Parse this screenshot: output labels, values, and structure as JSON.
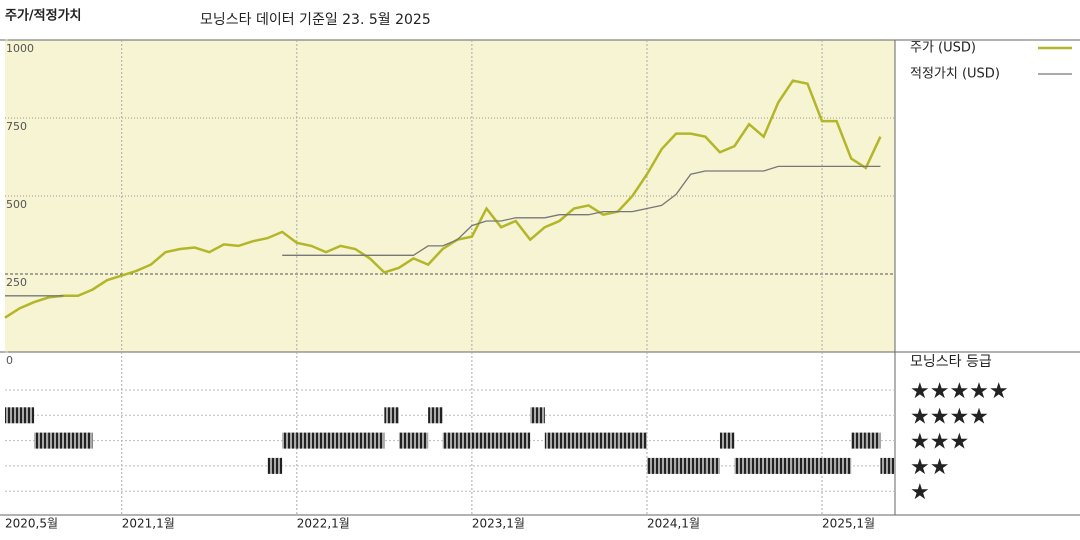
{
  "chart_data": {
    "type": "line",
    "title": "주가/적정가치",
    "subtitle": "모닝스타 데이터 기준일 23. 5월 2025",
    "x": [
      "2020-05",
      "2020-06",
      "2020-07",
      "2020-08",
      "2020-09",
      "2020-10",
      "2020-11",
      "2020-12",
      "2021-01",
      "2021-02",
      "2021-03",
      "2021-04",
      "2021-05",
      "2021-06",
      "2021-07",
      "2021-08",
      "2021-09",
      "2021-10",
      "2021-11",
      "2021-12",
      "2022-01",
      "2022-02",
      "2022-03",
      "2022-04",
      "2022-05",
      "2022-06",
      "2022-07",
      "2022-08",
      "2022-09",
      "2022-10",
      "2022-11",
      "2022-12",
      "2023-01",
      "2023-02",
      "2023-03",
      "2023-04",
      "2023-05",
      "2023-06",
      "2023-07",
      "2023-08",
      "2023-09",
      "2023-10",
      "2023-11",
      "2023-12",
      "2024-01",
      "2024-02",
      "2024-03",
      "2024-04",
      "2024-05",
      "2024-06",
      "2024-07",
      "2024-08",
      "2024-09",
      "2024-10",
      "2024-11",
      "2024-12",
      "2025-01",
      "2025-02",
      "2025-03",
      "2025-04",
      "2025-05"
    ],
    "series": [
      {
        "name": "주가 (USD)",
        "color": "#b3b628",
        "values": [
          110,
          140,
          160,
          175,
          180,
          180,
          200,
          230,
          245,
          260,
          280,
          320,
          330,
          335,
          320,
          345,
          340,
          355,
          365,
          385,
          350,
          340,
          320,
          340,
          330,
          300,
          255,
          270,
          300,
          280,
          330,
          360,
          370,
          460,
          400,
          420,
          360,
          400,
          420,
          460,
          470,
          440,
          450,
          500,
          570,
          650,
          700,
          700,
          690,
          640,
          660,
          730,
          690,
          800,
          870,
          860,
          740,
          740,
          620,
          590,
          690
        ]
      },
      {
        "name": "적정가치 (USD)",
        "color": "#777777",
        "values": [
          180,
          180,
          180,
          180,
          180,
          null,
          null,
          null,
          null,
          null,
          null,
          null,
          null,
          null,
          null,
          null,
          null,
          null,
          null,
          310,
          310,
          310,
          310,
          310,
          310,
          310,
          310,
          310,
          310,
          340,
          340,
          360,
          405,
          420,
          420,
          430,
          430,
          430,
          440,
          440,
          440,
          450,
          450,
          450,
          460,
          470,
          505,
          570,
          580,
          580,
          580,
          580,
          580,
          595,
          595,
          595,
          595,
          595,
          595,
          595,
          595
        ]
      }
    ],
    "xlim": [
      "2020-05",
      "2025-06"
    ],
    "xticks": [
      {
        "value": "2020-05",
        "label": "2020,5월"
      },
      {
        "value": "2021-01",
        "label": "2021,1월"
      },
      {
        "value": "2022-01",
        "label": "2022,1월"
      },
      {
        "value": "2023-01",
        "label": "2023,1월"
      },
      {
        "value": "2024-01",
        "label": "2024,1월"
      },
      {
        "value": "2025-01",
        "label": "2025,1월"
      }
    ],
    "ylim": [
      0,
      1000
    ],
    "yticks": [
      0,
      250,
      500,
      750,
      1000
    ],
    "grid": true,
    "rating": {
      "title": "모닝스타 등급",
      "levels": [
        5,
        4,
        3,
        2,
        1
      ],
      "level_labels": [
        "★★★★★",
        "★★★★",
        "★★★",
        "★★",
        "★"
      ],
      "values": [
        4,
        4,
        3,
        3,
        3,
        3,
        null,
        null,
        null,
        null,
        null,
        null,
        null,
        null,
        null,
        null,
        null,
        null,
        2,
        3,
        3,
        3,
        3,
        3,
        3,
        3,
        4,
        3,
        3,
        4,
        3,
        3,
        3,
        3,
        3,
        3,
        4,
        3,
        3,
        3,
        3,
        3,
        3,
        3,
        2,
        2,
        2,
        2,
        2,
        3,
        2,
        2,
        2,
        2,
        2,
        2,
        2,
        2,
        3,
        3,
        2
      ]
    }
  }
}
